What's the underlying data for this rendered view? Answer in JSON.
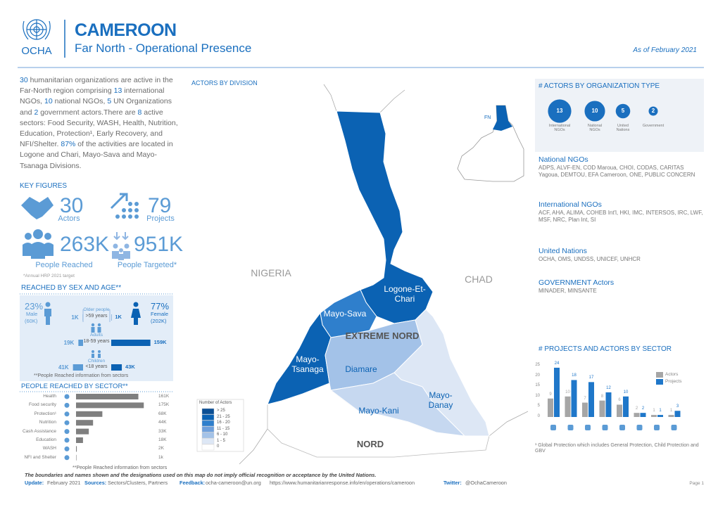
{
  "header": {
    "title": "CAMEROON",
    "subtitle": "Far North - Operational Presence",
    "date": "As of February 2021",
    "logo": "OCHA"
  },
  "summary": [
    {
      "text": "30",
      "highlight": true
    },
    {
      "text": " humanitarian organizations are active in the Far-North region comprising "
    },
    {
      "text": "13",
      "highlight": true
    },
    {
      "text": " international NGOs, "
    },
    {
      "text": "10",
      "highlight": true
    },
    {
      "text": " national NGOs, "
    },
    {
      "text": "5",
      "highlight": true
    },
    {
      "text": " UN Organizations and "
    },
    {
      "text": "2",
      "highlight": true
    },
    {
      "text": " government actors.There are  "
    },
    {
      "text": "8",
      "highlight": true
    },
    {
      "text": " active sectors: Food Security, WASH, Health, Nutrition, Education, Protection¹, Early Recovery, and NFI/Shelter. "
    },
    {
      "text": "87%",
      "highlight": true
    },
    {
      "text": " of the activities are located in Logone and Chari, Mayo-Sava and Mayo-Tsanaga Divisions."
    }
  ],
  "key_figures": {
    "title": "KEY FIGURES",
    "items": [
      {
        "value": 30,
        "label": "Actors"
      },
      {
        "value": 79,
        "label": "Projects"
      },
      {
        "value": "263K",
        "label": "People Reached"
      },
      {
        "value": "951K",
        "label": "People Targeted*"
      }
    ],
    "note": "*Annual HRP 2021 target"
  },
  "sex_age": {
    "title": "REACHED BY SEX AND AGE**",
    "male": {
      "percent": "23%",
      "label": "Male",
      "count": "(60K)"
    },
    "female": {
      "percent": "77%",
      "label": "Female",
      "count": "(202K)"
    },
    "groups": [
      {
        "label": "Older people",
        "range": ">59 years",
        "male": 1,
        "male_label": "1K",
        "female": 1,
        "female_label": "1K"
      },
      {
        "label": "Adults",
        "range": "18-59 years",
        "male": 19,
        "male_label": "19K",
        "female": 159,
        "female_label": "159K"
      },
      {
        "label": "Children",
        "range": "<18 years",
        "male": 41,
        "male_label": "41K",
        "female": 43,
        "female_label": "43K"
      }
    ],
    "male_color": "#5b9bd5",
    "female_color": "#0b62b3",
    "note": "**People Reached information from sectors"
  },
  "sectors": {
    "title": "PEOPLE REACHED BY SECTOR**",
    "categories": [
      "Health",
      "Food security",
      "Protection¹",
      "Nutrition",
      "Cash Assistance",
      "Education",
      "WASH",
      "NFI and Shelter"
    ],
    "values": [
      161,
      175,
      68,
      44,
      33,
      18,
      2,
      1
    ],
    "value_labels": [
      "161K",
      "175K",
      "68K",
      "44K",
      "33K",
      "18K",
      "2K",
      "1k"
    ],
    "color": "#7f7f7f"
  },
  "map": {
    "title": "ACTORS BY DIVISION",
    "countries": [
      "NIGERIA",
      "CHAD"
    ],
    "regions": [
      "EXTREME NORD",
      "NORD"
    ],
    "inset_label": "FN",
    "divisions": [
      {
        "name": "Logone-Et-\nChari",
        "color": "#0b62b3",
        "text_color": "#ffffff"
      },
      {
        "name": "Mayo-Sava",
        "color": "#2f7fcc",
        "text_color": "#ffffff"
      },
      {
        "name": "Mayo-\nTsanaga",
        "color": "#0b62b3",
        "text_color": "#ffffff"
      },
      {
        "name": "Diamare",
        "color": "#a3c2e8",
        "text_color": "#0b62b3"
      },
      {
        "name": "Mayo-\nDanay",
        "color": "#dde7f5",
        "text_color": "#0b62b3"
      },
      {
        "name": "Mayo-Kani",
        "color": "#c6d8f0",
        "text_color": "#0b62b3"
      }
    ],
    "legend": {
      "title": "Number of Actors",
      "classes": [
        {
          "label": "> 25",
          "color": "#0b4f94"
        },
        {
          "label": "21 - 25",
          "color": "#0b62b3"
        },
        {
          "label": "16 - 20",
          "color": "#2f7fcc"
        },
        {
          "label": "11 - 15",
          "color": "#6fa0dc"
        },
        {
          "label": "6 - 10",
          "color": "#a3c2e8"
        },
        {
          "label": "1 - 5",
          "color": "#dde7f5"
        },
        {
          "label": "0",
          "color": "#ffffff"
        }
      ]
    }
  },
  "org_types": {
    "title": "# ACTORS BY ORGANIZATION TYPE",
    "color": "#1a6fbf",
    "items": [
      {
        "value": 13,
        "label": "International\nNGOs"
      },
      {
        "value": 10,
        "label": "National\nNGOs"
      },
      {
        "value": 5,
        "label": "United\nNations"
      },
      {
        "value": 2,
        "label": "Government"
      }
    ],
    "lists": [
      {
        "title": "National NGOs",
        "members": "ADPS, ALVF-EN, COD Maroua, CHOI, CODAS, CARITAS Yagoua, DEMTOU, EFA Cameroon, ONE, PUBLIC CONCERN"
      },
      {
        "title": "International NGOs",
        "members": "ACF, AHA, ALIMA, COHEB Int'l, HKI, IMC, INTERSOS, IRC, LWF, MSF, NRC,  Plan Int, SI"
      },
      {
        "title": "United Nations",
        "members": "OCHA, OMS, UNDSS, UNICEF, UNHCR"
      },
      {
        "title": "GOVERNMENT Actors",
        "members": "MINADER, MINSANTE"
      }
    ]
  },
  "chart_data": {
    "type": "bar",
    "title": "# PROJECTS AND ACTORS BY SECTOR",
    "categories": [
      null,
      null,
      null,
      null,
      null,
      null,
      null,
      null
    ],
    "series": [
      {
        "name": "Actors",
        "color": "#a6a6a6",
        "values": [
          9,
          10,
          7,
          8,
          6,
          2,
          1,
          1
        ]
      },
      {
        "name": "Projects",
        "color": "#1f77c9",
        "values": [
          24,
          18,
          17,
          12,
          10,
          2,
          1,
          3
        ]
      }
    ],
    "ylim": [
      0,
      25
    ],
    "yticks": [
      0,
      5,
      10,
      15,
      20,
      25
    ],
    "grid": false
  },
  "footnote": "¹ Global Protection which includes General Protection, Child Protection and GBV",
  "footer": {
    "note": "**People Reached information from sectors",
    "disclaimer": "The boundaries and names shown and the designations used on this map do not imply official recognition or acceptance by the United Nations.",
    "update_label": "Update:",
    "update": "February 2021",
    "sources_label": "Sources:",
    "sources": "Sectors/Clusters, Partners",
    "feedback_label": "Feedback:",
    "feedback": "ocha-cameroon@un.org",
    "url": "https://www.humanitarianresponse.info/en/operations/cameroon",
    "twitter_label": "Twitter:",
    "twitter": "@OchaCameroon",
    "page": "Page 1"
  }
}
